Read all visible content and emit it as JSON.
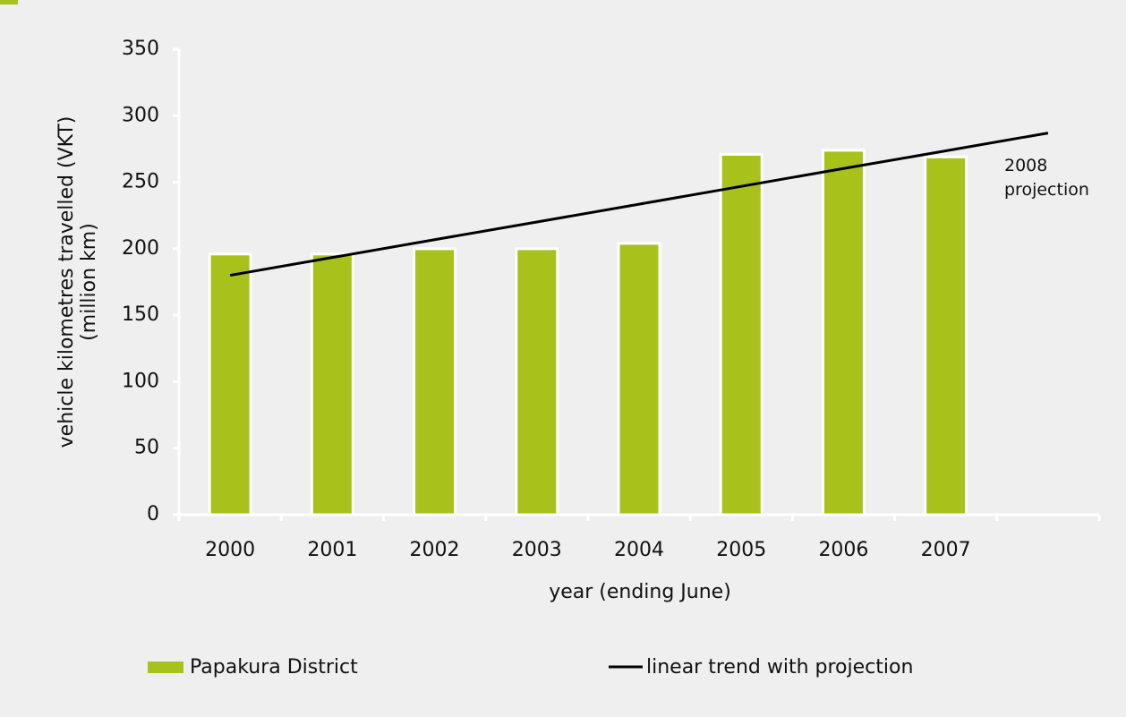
{
  "chart_data": {
    "type": "bar",
    "categories": [
      "2000",
      "2001",
      "2002",
      "2003",
      "2004",
      "2005",
      "2006",
      "2007",
      null
    ],
    "series": [
      {
        "name": "Papakura District",
        "type": "bar",
        "color": "#a9c21b",
        "values": [
          196,
          196,
          200,
          200,
          204,
          271,
          274,
          269,
          null
        ]
      },
      {
        "name": "linear trend with projection",
        "type": "line",
        "color": "#000000",
        "values": [
          180,
          193.4,
          206.8,
          220.1,
          233.5,
          246.9,
          260.3,
          273.6,
          287
        ]
      }
    ],
    "annotation": "2008 projection",
    "x_label": "year (ending June)",
    "y_label": [
      "vehicle kilometres travelled (VKT)",
      "(million km)"
    ],
    "ylim": [
      0,
      350
    ],
    "yticks": [
      0,
      50,
      100,
      150,
      200,
      250,
      300,
      350
    ],
    "grid": false,
    "legend": "bottom"
  }
}
